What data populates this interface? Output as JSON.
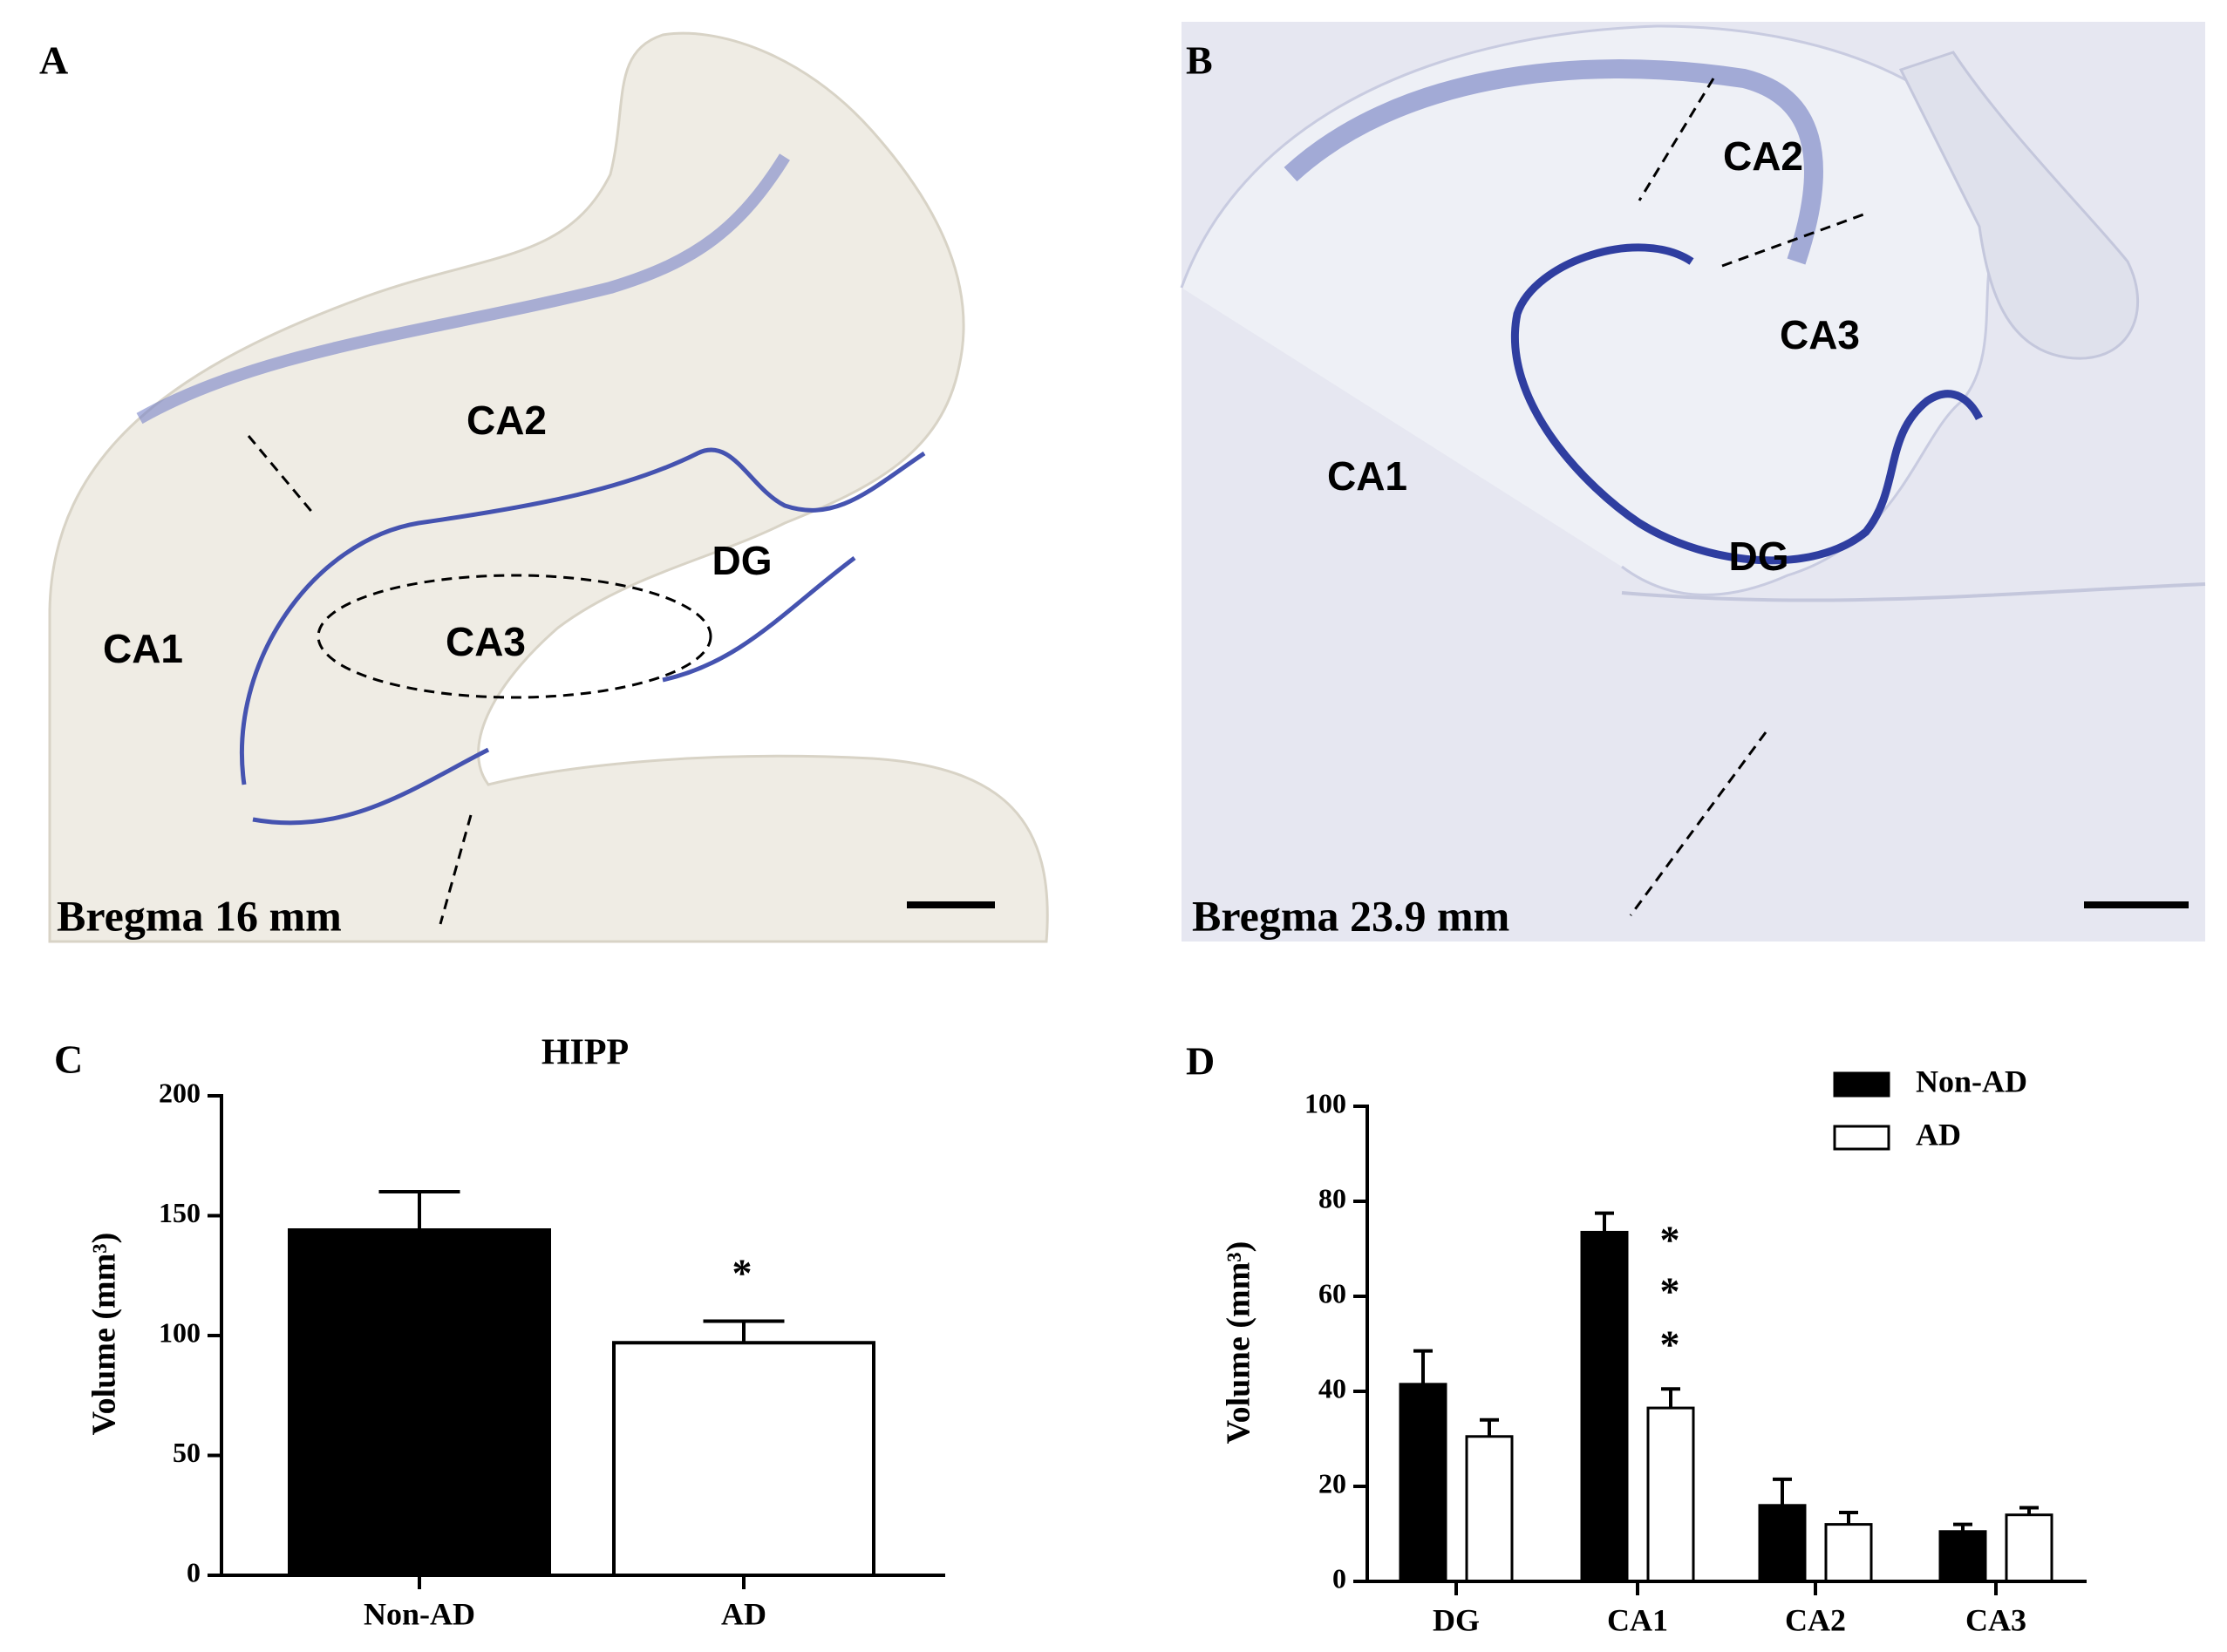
{
  "panels": [
    {
      "letter": "A",
      "regions": [
        "CA2",
        "DG",
        "CA1",
        "CA3"
      ],
      "bregma": "Bregma 16 mm"
    },
    {
      "letter": "B",
      "regions": [
        "CA2",
        "CA3",
        "CA1",
        "DG"
      ],
      "bregma": "Bregma 23.9 mm"
    }
  ],
  "chart_data": [
    {
      "type": "bar",
      "letter": "C",
      "title": "HIPP",
      "y_label": "Volume (mm³)",
      "categories": [
        "Non-AD",
        "AD"
      ],
      "values": [
        144,
        97
      ],
      "errors": [
        16,
        9
      ],
      "colors": [
        "#000000",
        "#ffffff"
      ],
      "annotations": [
        "*"
      ],
      "ylim": [
        0,
        200
      ],
      "yticks": [
        0,
        50,
        100,
        150,
        200
      ]
    },
    {
      "type": "grouped-bar",
      "letter": "D",
      "y_label": "Volume (mm³)",
      "categories": [
        "DG",
        "CA1",
        "CA2",
        "CA3"
      ],
      "series": [
        {
          "name": "Non-AD",
          "color": "#000000",
          "values": [
            41.5,
            73.5,
            16,
            10.5
          ],
          "errors": [
            7,
            4,
            5.5,
            1.5
          ]
        },
        {
          "name": "AD",
          "color": "#ffffff",
          "values": [
            30.5,
            36.5,
            12,
            14
          ],
          "errors": [
            3.5,
            4,
            2.5,
            1.5
          ]
        }
      ],
      "annotations": [
        "*",
        "*",
        "*"
      ],
      "legend": "upper right",
      "ylim": [
        0,
        100
      ],
      "yticks": [
        0,
        20,
        40,
        60,
        80,
        100
      ]
    }
  ]
}
